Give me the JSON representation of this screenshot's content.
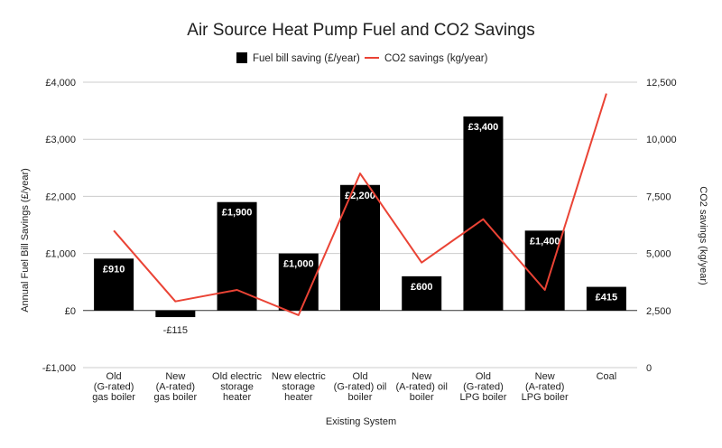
{
  "chart_data": {
    "type": "bar",
    "title": "Air Source Heat Pump Fuel and CO2 Savings",
    "xlabel": "Existing System",
    "ylabel": "Annual Fuel Bill Savings (£/year)",
    "y2label": "CO2 savings (kg/year)",
    "legend_position": "top",
    "grid": true,
    "categories": [
      [
        "Old",
        "(G-rated)",
        "gas boiler"
      ],
      [
        "New",
        "(A-rated)",
        "gas boiler"
      ],
      [
        "Old electric",
        "storage",
        "heater"
      ],
      [
        "New electric",
        "storage",
        "heater"
      ],
      [
        "Old",
        "(G-rated) oil",
        "boiler"
      ],
      [
        "New",
        "(A-rated) oil",
        "boiler"
      ],
      [
        "Old",
        "(G-rated)",
        "LPG boiler"
      ],
      [
        "New",
        "(A-rated)",
        "LPG boiler"
      ],
      [
        "Coal"
      ]
    ],
    "ylim": [
      -1000,
      4000
    ],
    "yticks": [
      -1000,
      0,
      1000,
      2000,
      3000,
      4000
    ],
    "ytick_labels": [
      "-£1,000",
      "£0",
      "£1,000",
      "£2,000",
      "£3,000",
      "£4,000"
    ],
    "y2lim": [
      0,
      12500
    ],
    "y2ticks": [
      0,
      2500,
      5000,
      7500,
      10000,
      12500
    ],
    "y2tick_labels": [
      "0",
      "2,500",
      "5,000",
      "7,500",
      "10,000",
      "12,500"
    ],
    "series": [
      {
        "name": "Fuel bill saving (£/year)",
        "type": "bar",
        "axis": "left",
        "color": "#000000",
        "values": [
          910,
          -115,
          1900,
          1000,
          2200,
          600,
          3400,
          1400,
          415
        ],
        "labels": [
          "£910",
          "-£115",
          "£1,900",
          "£1,000",
          "£2,200",
          "£600",
          "£3,400",
          "£1,400",
          "£415"
        ]
      },
      {
        "name": "CO2 savings (kg/year)",
        "type": "line",
        "axis": "right",
        "color": "#ea4335",
        "values": [
          6000,
          2900,
          3400,
          2300,
          8500,
          4600,
          6500,
          3400,
          12000
        ]
      }
    ]
  }
}
